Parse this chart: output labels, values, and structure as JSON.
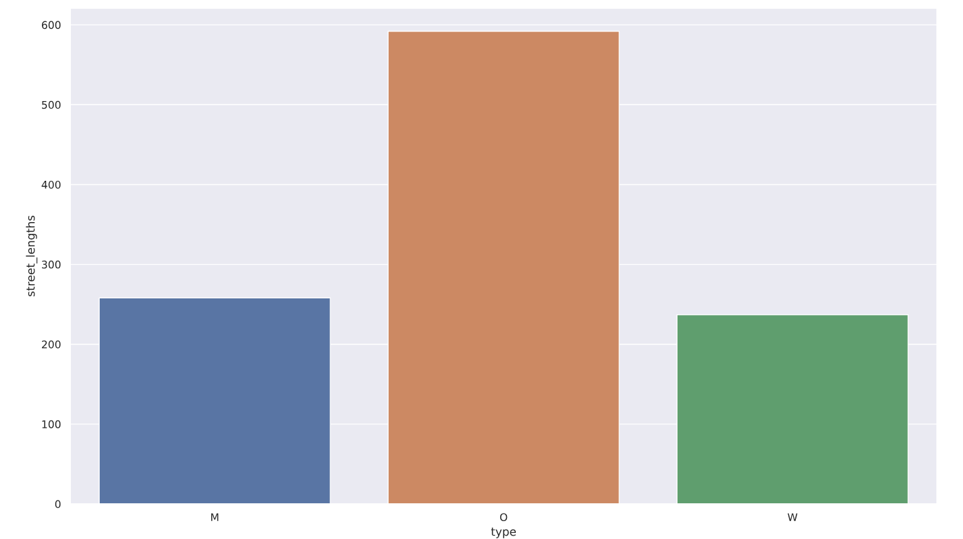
{
  "chart_data": {
    "type": "bar",
    "xlabel": "type",
    "ylabel": "street_lengths",
    "categories": [
      "M",
      "O",
      "W"
    ],
    "values": [
      258,
      592,
      237
    ],
    "colors": [
      "#5975a4",
      "#cc8963",
      "#5f9e6e"
    ],
    "ylim": [
      0,
      621
    ],
    "yticks": [
      0,
      100,
      200,
      300,
      400,
      500,
      600
    ],
    "grid": "y"
  }
}
